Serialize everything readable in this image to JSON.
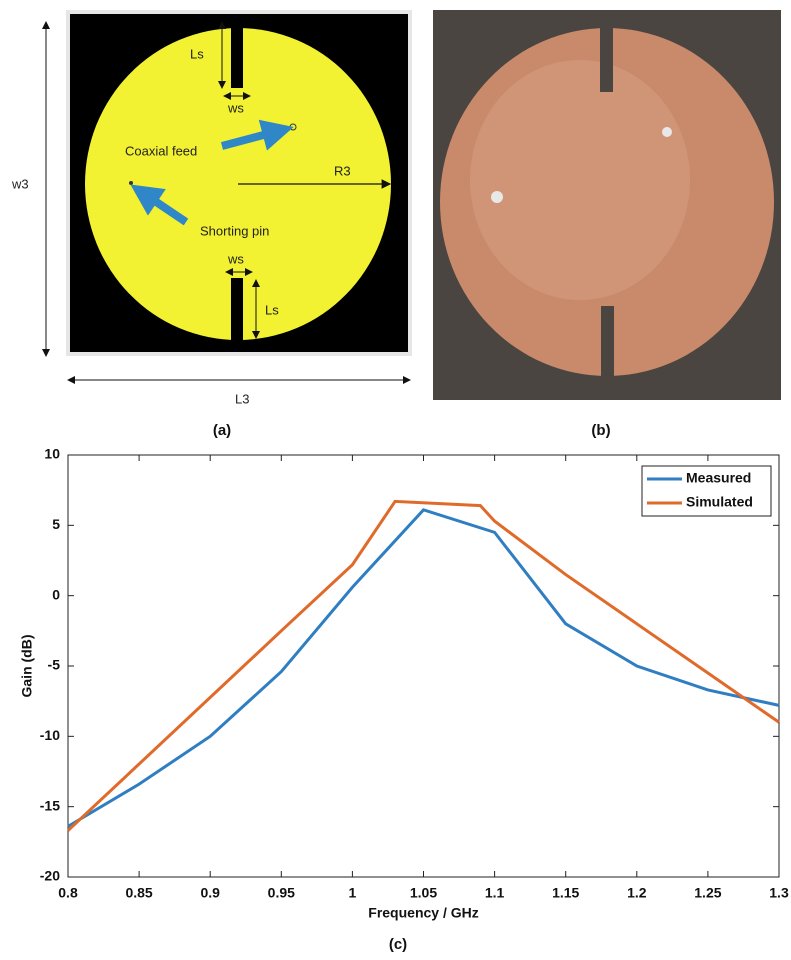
{
  "diagram": {
    "labels": [
      "Ls",
      "ws",
      "Coaxial feed",
      "R3",
      "Shorting pin",
      "ws",
      "Ls",
      "w3",
      "L3"
    ]
  },
  "panel_labels": [
    "(a)",
    "(b)",
    "(c)"
  ],
  "chart_data": {
    "type": "line",
    "x_label": "Frequency / GHz",
    "y_label": "Gain (dB)",
    "series": [
      {
        "name": "Measured",
        "color": "#2f7ec1",
        "x": [
          0.8,
          0.85,
          0.9,
          0.95,
          1.0,
          1.05,
          1.1,
          1.15,
          1.2,
          1.25,
          1.3
        ],
        "values": [
          -16.4,
          -13.4,
          -10,
          -5.4,
          0.6,
          6.1,
          4.5,
          -2,
          -5,
          -6.7,
          -7.8
        ]
      },
      {
        "name": "Simulated",
        "color": "#e06a2a",
        "x": [
          0.8,
          0.95,
          1.0,
          1.03,
          1.09,
          1.1,
          1.15,
          1.2,
          1.25,
          1.3
        ],
        "values": [
          -16.7,
          -2.5,
          2.2,
          6.7,
          6.4,
          5.3,
          1.5,
          -2.0,
          -5.5,
          -9.0
        ]
      }
    ],
    "xlim": [
      0.8,
      1.3
    ],
    "ylim": [
      -20,
      10
    ],
    "xticks": [
      0.8,
      0.85,
      0.9,
      0.95,
      1,
      1.05,
      1.1,
      1.15,
      1.2,
      1.25,
      1.3
    ],
    "yticks": [
      -20,
      -15,
      -10,
      -5,
      0,
      5,
      10
    ],
    "legend": "upper right"
  }
}
